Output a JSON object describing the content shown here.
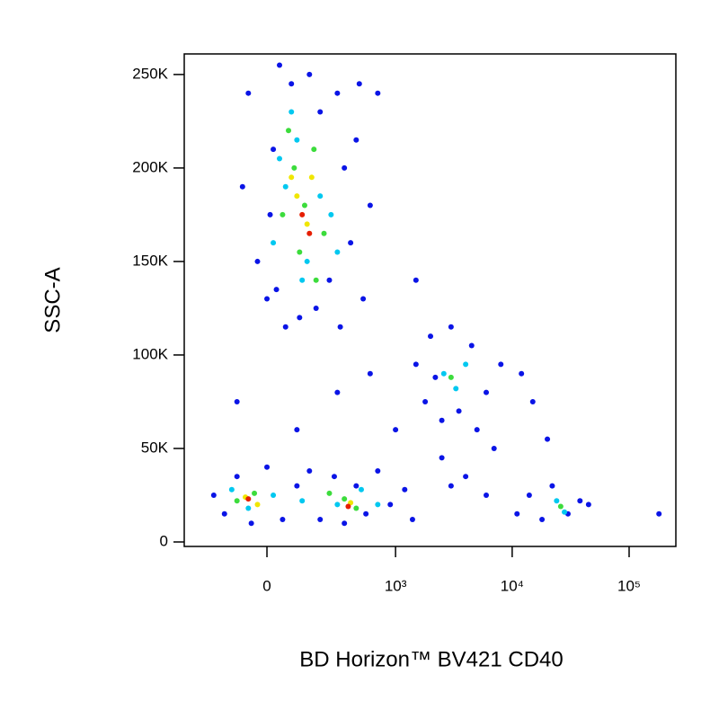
{
  "chart_data": {
    "type": "scatter",
    "xlabel": "BD Horizon™ BV421 CD40",
    "ylabel": "SSC-A",
    "xscale": "biexponential",
    "xlim": [
      -392,
      251000
    ],
    "ylim": [
      -2400,
      261000
    ],
    "xticks": [
      0,
      {
        "value": 1000,
        "label": "10³"
      },
      {
        "value": 10000,
        "label": "10⁴"
      },
      {
        "value": 100000,
        "label": "10⁵"
      }
    ],
    "yticks": [
      0,
      {
        "value": 50000,
        "label": "50K"
      },
      {
        "value": 100000,
        "label": "100K"
      },
      {
        "value": 150000,
        "label": "150K"
      },
      {
        "value": 200000,
        "label": "200K"
      },
      {
        "value": 250000,
        "label": "250K"
      }
    ],
    "series": [
      {
        "color": "#0a14e6",
        "x": [
          -60,
          -30,
          0,
          20,
          40,
          60,
          80,
          110,
          150,
          200,
          250,
          300,
          350,
          400,
          450,
          520,
          600,
          700,
          -80,
          10,
          30,
          180,
          320,
          480,
          -200,
          -150,
          -100,
          -50,
          0,
          50,
          100,
          150,
          200,
          280,
          350,
          450,
          550,
          700,
          900,
          1200,
          1400,
          1500,
          1800,
          2000,
          2500,
          3000,
          3500,
          4500,
          6000,
          8000,
          12000,
          2200,
          5000,
          11000,
          14000,
          18000,
          22000,
          30000,
          38000,
          45000,
          1000,
          2500,
          4000,
          7000,
          600,
          300,
          20000,
          1500,
          15000,
          100,
          -100,
          180000,
          3000,
          6000
        ],
        "values": [
          240000,
          150000,
          130000,
          210000,
          255000,
          115000,
          245000,
          120000,
          250000,
          230000,
          140000,
          240000,
          200000,
          160000,
          215000,
          130000,
          180000,
          240000,
          190000,
          175000,
          135000,
          125000,
          115000,
          245000,
          25000,
          15000,
          35000,
          10000,
          40000,
          12000,
          30000,
          38000,
          12000,
          35000,
          10000,
          30000,
          15000,
          38000,
          20000,
          28000,
          12000,
          95000,
          75000,
          110000,
          65000,
          115000,
          70000,
          105000,
          80000,
          95000,
          90000,
          88000,
          60000,
          15000,
          25000,
          12000,
          30000,
          15000,
          22000,
          20000,
          60000,
          45000,
          35000,
          50000,
          90000,
          80000,
          55000,
          140000,
          75000,
          60000,
          75000,
          15000,
          30000,
          25000
        ]
      },
      {
        "color": "#00c8f0",
        "x": [
          20,
          60,
          100,
          140,
          200,
          260,
          120,
          40,
          300,
          80,
          -120,
          -60,
          20,
          120,
          300,
          500,
          700,
          2600,
          3300,
          4000,
          24000,
          28000
        ],
        "values": [
          160000,
          190000,
          215000,
          150000,
          185000,
          175000,
          140000,
          205000,
          155000,
          230000,
          28000,
          18000,
          25000,
          22000,
          20000,
          28000,
          20000,
          90000,
          82000,
          95000,
          22000,
          16000
        ]
      },
      {
        "color": "#3cdc3c",
        "x": [
          50,
          90,
          130,
          170,
          220,
          110,
          70,
          180,
          -100,
          -40,
          350,
          450,
          250,
          3000,
          26000
        ],
        "values": [
          175000,
          200000,
          180000,
          210000,
          165000,
          155000,
          220000,
          140000,
          22000,
          26000,
          23000,
          18000,
          26000,
          88000,
          19000
        ]
      },
      {
        "color": "#f0e600",
        "x": [
          100,
          140,
          80,
          160,
          -70,
          -30,
          400
        ],
        "values": [
          185000,
          170000,
          195000,
          195000,
          24000,
          20000,
          21000
        ]
      },
      {
        "color": "#e61e00",
        "x": [
          120,
          150,
          -60,
          380
        ],
        "values": [
          175000,
          165000,
          23000,
          19000
        ]
      }
    ]
  }
}
